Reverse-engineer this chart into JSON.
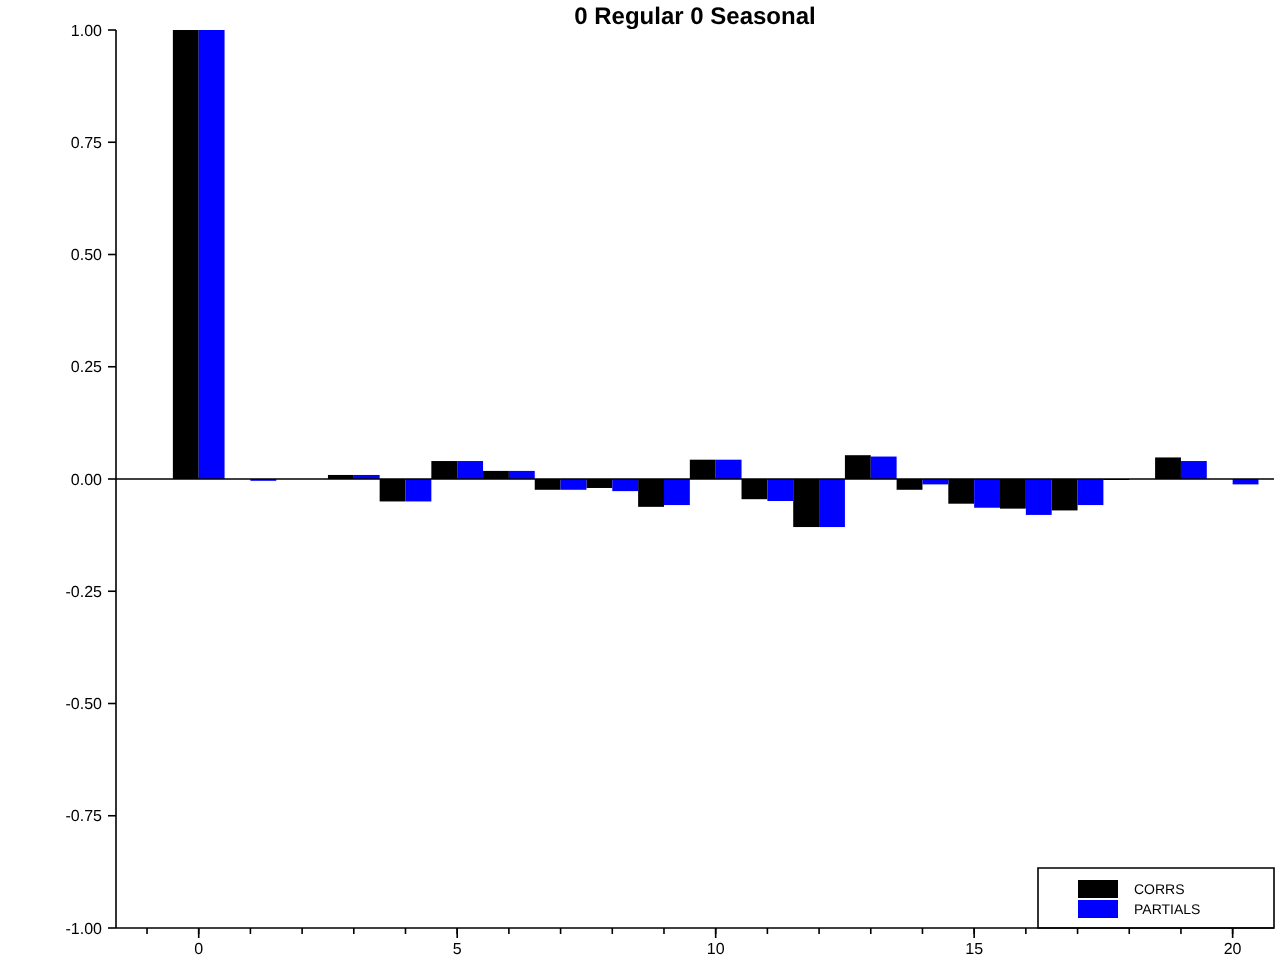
{
  "chart_data": {
    "type": "bar",
    "title": "0 Regular 0 Seasonal",
    "x": [
      0,
      1,
      2,
      3,
      4,
      5,
      6,
      7,
      8,
      9,
      10,
      11,
      12,
      13,
      14,
      15,
      16,
      17,
      18,
      19,
      20
    ],
    "series": [
      {
        "name": "CORRS",
        "color": "#000000",
        "values": [
          1,
          null,
          null,
          0.009,
          -0.05,
          0.04,
          0.018,
          -0.024,
          -0.02,
          -0.062,
          0.043,
          -0.045,
          -0.107,
          0.053,
          -0.024,
          -0.055,
          -0.066,
          -0.07,
          0,
          0.048,
          null
        ]
      },
      {
        "name": "PARTIALS",
        "color": "#0000ff",
        "values": [
          1,
          -0.004,
          null,
          0.009,
          -0.05,
          0.04,
          0.018,
          -0.024,
          -0.027,
          -0.058,
          0.043,
          -0.049,
          -0.107,
          0.05,
          -0.012,
          -0.064,
          -0.08,
          -0.058,
          null,
          0.04,
          -0.012
        ]
      }
    ],
    "xlim": [
      -1.6,
      20.8
    ],
    "xticks": [
      0,
      5,
      10,
      15,
      20
    ],
    "ylim": [
      -1,
      1
    ],
    "yticks": [
      {
        "value": -1,
        "label": "-1.00"
      },
      {
        "value": -0.75,
        "label": "-0.75"
      },
      {
        "value": -0.5,
        "label": "-0.50"
      },
      {
        "value": -0.25,
        "label": "-0.25"
      },
      {
        "value": 0,
        "label": "0.00"
      },
      {
        "value": 0.25,
        "label": "0.25"
      },
      {
        "value": 0.5,
        "label": "0.50"
      },
      {
        "value": 0.75,
        "label": "0.75"
      },
      {
        "value": 1,
        "label": "1.00"
      }
    ],
    "ref_lines": [
      {
        "axis": "y",
        "value": 0,
        "color": "#000000"
      }
    ],
    "grid": false,
    "legend": "bottom right"
  }
}
